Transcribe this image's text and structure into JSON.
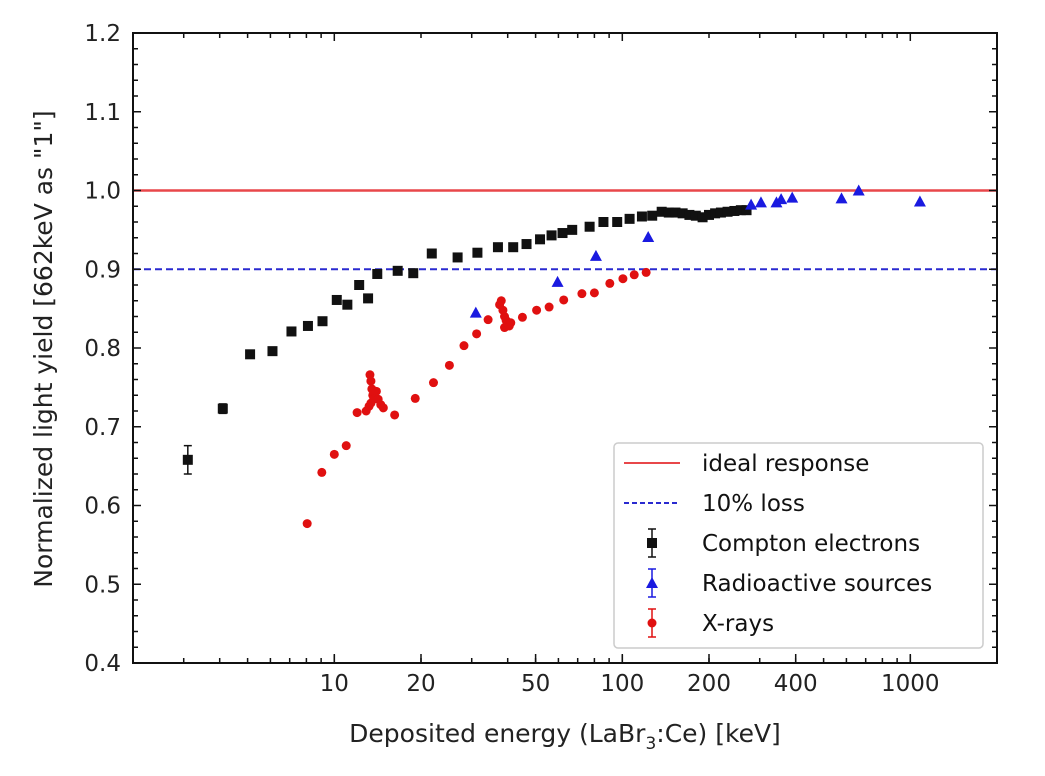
{
  "chart_data": {
    "type": "scatter",
    "title": "",
    "xlabel": "Deposited energy (LaBr",
    "xlabel_sub": "3",
    "xlabel_tail": ":Ce) [keV]",
    "ylabel": "Normalized light yield [662keV as \"1\"]",
    "xscale": "log",
    "xlim": [
      2,
      2000
    ],
    "ylim": [
      0.4,
      1.2
    ],
    "grid": false,
    "legend_position": "lower-right",
    "xticks": [
      10,
      20,
      50,
      100,
      200,
      400,
      1000
    ],
    "xtick_labels": [
      "10",
      "20",
      "50",
      "100",
      "200",
      "400",
      "1000"
    ],
    "yticks": [
      0.4,
      0.5,
      0.6,
      0.7,
      0.8,
      0.9,
      1.0,
      1.1,
      1.2
    ],
    "ytick_labels": [
      "0.4",
      "0.5",
      "0.6",
      "0.7",
      "0.8",
      "0.9",
      "1.0",
      "1.1",
      "1.2"
    ],
    "hlines": [
      {
        "name": "ideal response",
        "y": 1.0,
        "color": "#e8474a",
        "style": "solid"
      },
      {
        "name": "10% loss",
        "y": 0.9,
        "color": "#2a2ad0",
        "style": "dashed"
      }
    ],
    "series": [
      {
        "name": "Compton electrons",
        "marker": "square",
        "color": "#111111",
        "x": [
          3.1,
          4.1,
          5.1,
          6.1,
          7.1,
          8.1,
          9.1,
          10.2,
          11.1,
          12.2,
          13.1,
          14.1,
          16.6,
          18.8,
          21.8,
          26.8,
          31.4,
          37,
          41.8,
          46.5,
          51.8,
          56.8,
          62,
          67,
          77,
          86,
          96,
          106,
          117,
          127,
          137,
          145,
          153,
          162,
          171,
          180,
          190,
          200,
          210,
          220,
          232,
          245,
          258,
          270
        ],
        "y": [
          0.658,
          0.723,
          0.792,
          0.796,
          0.821,
          0.828,
          0.834,
          0.861,
          0.855,
          0.88,
          0.863,
          0.894,
          0.898,
          0.895,
          0.92,
          0.915,
          0.921,
          0.928,
          0.928,
          0.932,
          0.938,
          0.943,
          0.946,
          0.95,
          0.954,
          0.96,
          0.96,
          0.964,
          0.967,
          0.968,
          0.973,
          0.972,
          0.972,
          0.971,
          0.969,
          0.968,
          0.966,
          0.969,
          0.971,
          0.972,
          0.973,
          0.974,
          0.975,
          0.975
        ],
        "yerr": [
          0.018,
          0.006,
          0,
          0,
          0,
          0,
          0,
          0,
          0,
          0,
          0,
          0,
          0,
          0,
          0,
          0,
          0,
          0,
          0,
          0,
          0,
          0,
          0,
          0,
          0,
          0,
          0,
          0,
          0,
          0,
          0,
          0,
          0,
          0,
          0,
          0,
          0,
          0,
          0,
          0,
          0,
          0,
          0,
          0
        ]
      },
      {
        "name": "Radioactive sources",
        "marker": "triangle",
        "color": "#1a1ae0",
        "x": [
          31,
          59.6,
          81,
          123,
          280,
          303,
          343,
          356,
          389,
          577,
          662,
          1080
        ],
        "y": [
          0.845,
          0.884,
          0.917,
          0.941,
          0.982,
          0.985,
          0.985,
          0.989,
          0.991,
          0.99,
          1.0,
          0.986
        ]
      },
      {
        "name": "X-rays",
        "marker": "circle",
        "color": "#e01010",
        "x": [
          8.05,
          9.05,
          10.0,
          11.0,
          12.0,
          12.9,
          13.2,
          13.3,
          13.4,
          13.4,
          13.5,
          13.6,
          13.7,
          14.0,
          14.2,
          14.5,
          14.8,
          16.2,
          19.1,
          22.1,
          25.1,
          28.2,
          31.2,
          34.2,
          37.5,
          38,
          38.5,
          39,
          39,
          39.5,
          40,
          40.5,
          41,
          45,
          50.4,
          55.7,
          62.6,
          72.4,
          80,
          90.5,
          100.5,
          110,
          121
        ],
        "y": [
          0.577,
          0.642,
          0.665,
          0.676,
          0.718,
          0.72,
          0.726,
          0.766,
          0.758,
          0.73,
          0.748,
          0.74,
          0.735,
          0.745,
          0.735,
          0.728,
          0.724,
          0.715,
          0.736,
          0.756,
          0.778,
          0.803,
          0.818,
          0.836,
          0.855,
          0.86,
          0.848,
          0.84,
          0.826,
          0.835,
          0.83,
          0.828,
          0.832,
          0.839,
          0.848,
          0.852,
          0.861,
          0.869,
          0.87,
          0.882,
          0.888,
          0.893,
          0.896
        ]
      }
    ]
  }
}
